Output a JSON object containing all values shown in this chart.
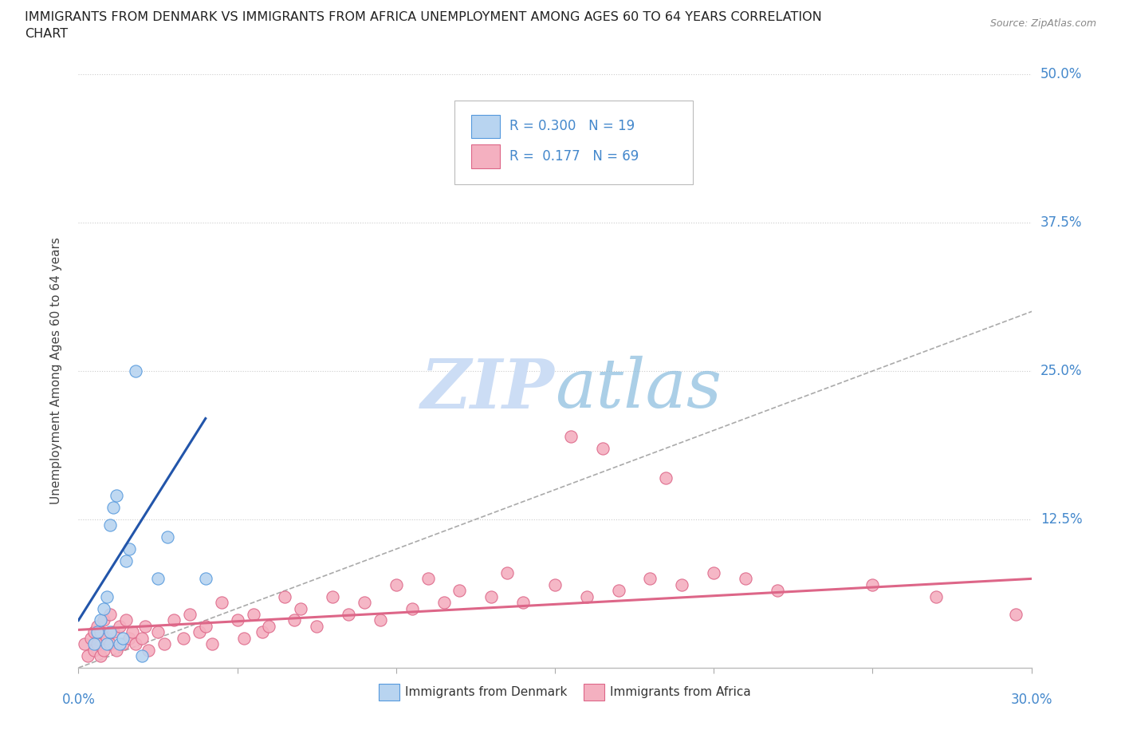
{
  "title_line1": "IMMIGRANTS FROM DENMARK VS IMMIGRANTS FROM AFRICA UNEMPLOYMENT AMONG AGES 60 TO 64 YEARS CORRELATION",
  "title_line2": "CHART",
  "source": "Source: ZipAtlas.com",
  "ylabel": "Unemployment Among Ages 60 to 64 years",
  "xlim": [
    0.0,
    0.3
  ],
  "ylim": [
    0.0,
    0.5
  ],
  "denmark_R": 0.3,
  "denmark_N": 19,
  "africa_R": 0.177,
  "africa_N": 69,
  "denmark_fill": "#b8d4f0",
  "africa_fill": "#f4b0c0",
  "denmark_edge": "#5599dd",
  "africa_edge": "#dd6688",
  "denmark_line": "#2255aa",
  "africa_line": "#dd6688",
  "ref_line_color": "#aaaaaa",
  "grid_color": "#cccccc",
  "tick_color": "#4488cc",
  "title_color": "#222222",
  "ylabel_color": "#444444",
  "source_color": "#888888",
  "watermark_color": "#ccddf5",
  "background": "#ffffff",
  "dk_x": [
    0.005,
    0.006,
    0.007,
    0.008,
    0.009,
    0.009,
    0.01,
    0.01,
    0.011,
    0.012,
    0.013,
    0.014,
    0.015,
    0.016,
    0.018,
    0.02,
    0.025,
    0.028,
    0.04
  ],
  "dk_y": [
    0.02,
    0.03,
    0.04,
    0.05,
    0.02,
    0.06,
    0.03,
    0.12,
    0.135,
    0.145,
    0.02,
    0.025,
    0.09,
    0.1,
    0.25,
    0.01,
    0.075,
    0.11,
    0.075
  ],
  "af_x": [
    0.002,
    0.003,
    0.004,
    0.005,
    0.005,
    0.006,
    0.006,
    0.007,
    0.007,
    0.008,
    0.008,
    0.009,
    0.01,
    0.01,
    0.011,
    0.012,
    0.013,
    0.014,
    0.015,
    0.016,
    0.017,
    0.018,
    0.02,
    0.021,
    0.022,
    0.025,
    0.027,
    0.03,
    0.033,
    0.035,
    0.038,
    0.04,
    0.042,
    0.045,
    0.05,
    0.052,
    0.055,
    0.058,
    0.06,
    0.065,
    0.068,
    0.07,
    0.075,
    0.08,
    0.085,
    0.09,
    0.095,
    0.1,
    0.105,
    0.11,
    0.115,
    0.12,
    0.13,
    0.135,
    0.14,
    0.15,
    0.155,
    0.16,
    0.165,
    0.17,
    0.18,
    0.185,
    0.19,
    0.2,
    0.21,
    0.22,
    0.25,
    0.27,
    0.295
  ],
  "af_y": [
    0.02,
    0.01,
    0.025,
    0.015,
    0.03,
    0.02,
    0.035,
    0.01,
    0.03,
    0.015,
    0.04,
    0.025,
    0.02,
    0.045,
    0.03,
    0.015,
    0.035,
    0.02,
    0.04,
    0.025,
    0.03,
    0.02,
    0.025,
    0.035,
    0.015,
    0.03,
    0.02,
    0.04,
    0.025,
    0.045,
    0.03,
    0.035,
    0.02,
    0.055,
    0.04,
    0.025,
    0.045,
    0.03,
    0.035,
    0.06,
    0.04,
    0.05,
    0.035,
    0.06,
    0.045,
    0.055,
    0.04,
    0.07,
    0.05,
    0.075,
    0.055,
    0.065,
    0.06,
    0.08,
    0.055,
    0.07,
    0.195,
    0.06,
    0.185,
    0.065,
    0.075,
    0.16,
    0.07,
    0.08,
    0.075,
    0.065,
    0.07,
    0.06,
    0.045
  ],
  "dk_trend_x": [
    0.0,
    0.04
  ],
  "dk_trend_y": [
    0.04,
    0.21
  ],
  "af_trend_x": [
    0.0,
    0.3
  ],
  "af_trend_y": [
    0.032,
    0.075
  ],
  "figsize": [
    14.06,
    9.3
  ],
  "dpi": 100
}
